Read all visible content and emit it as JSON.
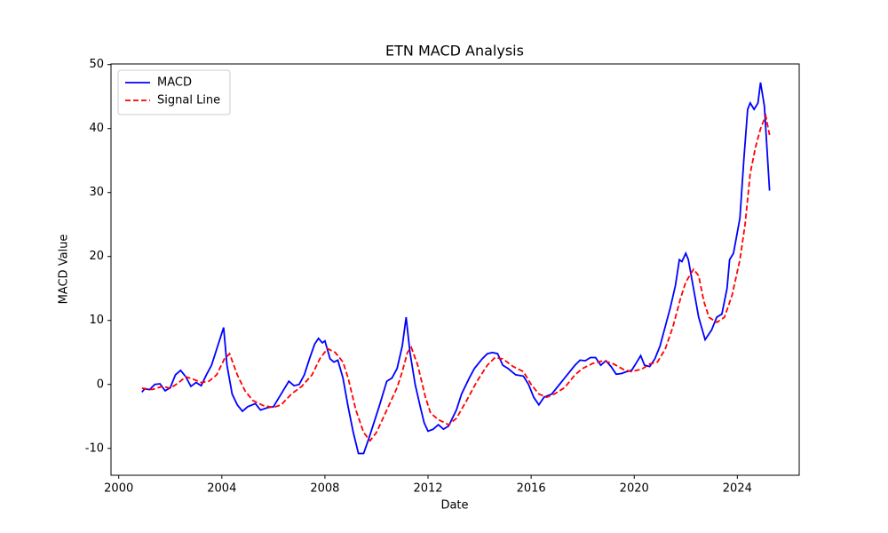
{
  "chart_data": {
    "type": "line",
    "title": "ETN MACD Analysis",
    "xlabel": "Date",
    "ylabel": "MACD Value",
    "xlim": [
      1999.7,
      2026.4
    ],
    "ylim": [
      -14.2,
      50.1
    ],
    "xticks": [
      2000,
      2004,
      2008,
      2012,
      2016,
      2020,
      2024
    ],
    "yticks": [
      -10,
      0,
      10,
      20,
      30,
      40,
      50
    ],
    "legend": "upper left",
    "grid": false,
    "series": [
      {
        "name": "MACD",
        "color": "#0000ff",
        "style": "solid",
        "x": [
          2000.9,
          2001.0,
          2001.2,
          2001.4,
          2001.6,
          2001.8,
          2002.0,
          2002.2,
          2002.4,
          2002.6,
          2002.8,
          2003.0,
          2003.2,
          2003.4,
          2003.6,
          2003.8,
          2004.07,
          2004.2,
          2004.4,
          2004.6,
          2004.8,
          2005.0,
          2005.3,
          2005.5,
          2005.8,
          2006.0,
          2006.3,
          2006.6,
          2006.8,
          2007.0,
          2007.2,
          2007.4,
          2007.6,
          2007.75,
          2007.9,
          2008.0,
          2008.2,
          2008.35,
          2008.5,
          2008.7,
          2008.9,
          2009.1,
          2009.3,
          2009.5,
          2009.7,
          2009.9,
          2010.1,
          2010.4,
          2010.6,
          2010.8,
          2011.0,
          2011.15,
          2011.3,
          2011.5,
          2011.7,
          2011.85,
          2012.0,
          2012.2,
          2012.4,
          2012.6,
          2012.8,
          2013.1,
          2013.3,
          2013.6,
          2013.8,
          2014.1,
          2014.3,
          2014.5,
          2014.7,
          2014.9,
          2015.1,
          2015.4,
          2015.7,
          2015.9,
          2016.1,
          2016.3,
          2016.5,
          2016.8,
          2017.1,
          2017.4,
          2017.7,
          2017.9,
          2018.1,
          2018.3,
          2018.5,
          2018.7,
          2018.9,
          2019.1,
          2019.3,
          2019.5,
          2019.7,
          2019.9,
          2020.1,
          2020.25,
          2020.4,
          2020.6,
          2020.8,
          2021.0,
          2021.2,
          2021.4,
          2021.6,
          2021.75,
          2021.85,
          2022.0,
          2022.1,
          2022.3,
          2022.5,
          2022.75,
          2023.0,
          2023.2,
          2023.4,
          2023.6,
          2023.7,
          2023.85,
          2024.1,
          2024.25,
          2024.4,
          2024.5,
          2024.65,
          2024.8,
          2024.9,
          2025.05,
          2025.25
        ],
        "values": [
          -1.2,
          -0.7,
          -0.8,
          0.0,
          0.1,
          -1.0,
          -0.5,
          1.5,
          2.2,
          1.2,
          -0.3,
          0.3,
          -0.2,
          1.5,
          3.0,
          5.5,
          8.9,
          3.0,
          -1.5,
          -3.2,
          -4.2,
          -3.5,
          -3.0,
          -4.0,
          -3.6,
          -3.5,
          -1.5,
          0.5,
          -0.2,
          0.0,
          1.5,
          4.0,
          6.3,
          7.2,
          6.5,
          6.8,
          4.0,
          3.5,
          3.8,
          1.0,
          -3.5,
          -7.5,
          -10.8,
          -10.8,
          -8.5,
          -6.0,
          -3.5,
          0.5,
          1.0,
          2.5,
          6.0,
          10.5,
          5.0,
          0.0,
          -3.5,
          -6.0,
          -7.3,
          -7.0,
          -6.3,
          -7.0,
          -6.5,
          -4.0,
          -1.5,
          1.0,
          2.5,
          4.0,
          4.8,
          5.0,
          4.8,
          3.0,
          2.5,
          1.5,
          1.3,
          0.0,
          -2.0,
          -3.2,
          -2.0,
          -1.5,
          0.0,
          1.5,
          3.0,
          3.8,
          3.7,
          4.2,
          4.2,
          3.0,
          3.7,
          2.8,
          1.6,
          1.7,
          2.0,
          2.2,
          3.5,
          4.5,
          3.0,
          2.8,
          4.0,
          6.0,
          9.0,
          12.0,
          15.5,
          19.5,
          19.2,
          20.5,
          19.5,
          15.0,
          10.5,
          7.0,
          8.5,
          10.5,
          11.0,
          15.0,
          19.5,
          20.5,
          26.0,
          35.0,
          43.0,
          44.0,
          43.0,
          44.0,
          47.2,
          43.5,
          30.3
        ]
      },
      {
        "name": "Signal Line",
        "color": "#ff0000",
        "style": "dashed",
        "x": [
          2000.9,
          2001.3,
          2001.7,
          2002.0,
          2002.3,
          2002.6,
          2002.9,
          2003.2,
          2003.5,
          2003.8,
          2004.1,
          2004.3,
          2004.6,
          2004.9,
          2005.2,
          2005.6,
          2006.0,
          2006.3,
          2006.7,
          2007.1,
          2007.5,
          2007.8,
          2008.1,
          2008.4,
          2008.7,
          2008.9,
          2009.2,
          2009.5,
          2009.75,
          2010.0,
          2010.4,
          2010.8,
          2011.0,
          2011.2,
          2011.35,
          2011.6,
          2011.9,
          2012.1,
          2012.4,
          2012.8,
          2013.1,
          2013.5,
          2013.9,
          2014.3,
          2014.6,
          2014.9,
          2015.3,
          2015.7,
          2016.0,
          2016.3,
          2016.6,
          2016.9,
          2017.3,
          2017.7,
          2018.0,
          2018.4,
          2018.8,
          2019.2,
          2019.6,
          2019.9,
          2020.3,
          2020.6,
          2020.9,
          2021.2,
          2021.5,
          2021.8,
          2022.0,
          2022.3,
          2022.5,
          2022.7,
          2022.9,
          2023.2,
          2023.5,
          2023.8,
          2024.1,
          2024.3,
          2024.5,
          2024.7,
          2024.9,
          2025.1,
          2025.25
        ],
        "values": [
          -0.6,
          -0.8,
          -0.3,
          -0.6,
          0.2,
          1.2,
          0.8,
          0.3,
          0.5,
          1.5,
          4.0,
          4.8,
          1.5,
          -1.0,
          -2.5,
          -3.3,
          -3.6,
          -3.2,
          -1.5,
          -0.3,
          1.5,
          4.0,
          5.6,
          5.0,
          3.5,
          1.0,
          -4.0,
          -7.5,
          -8.8,
          -7.5,
          -4.0,
          -0.5,
          2.0,
          5.0,
          5.8,
          3.0,
          -2.0,
          -4.5,
          -5.5,
          -6.3,
          -5.3,
          -2.5,
          0.5,
          3.0,
          4.2,
          4.0,
          2.8,
          2.0,
          0.0,
          -1.5,
          -2.0,
          -1.5,
          -0.5,
          1.5,
          2.5,
          3.3,
          3.7,
          3.2,
          2.3,
          2.0,
          2.4,
          3.2,
          3.5,
          5.5,
          9.0,
          13.5,
          16.0,
          18.0,
          17.0,
          13.0,
          10.5,
          9.7,
          10.5,
          14.0,
          19.5,
          25.0,
          33.0,
          37.0,
          40.0,
          42.0,
          39.0
        ]
      }
    ]
  }
}
